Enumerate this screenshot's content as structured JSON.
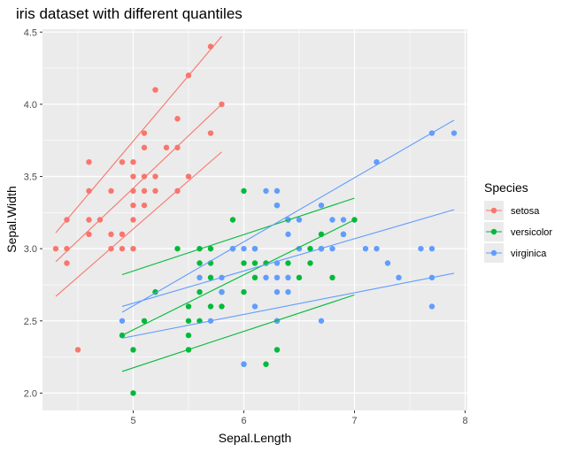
{
  "chart_data": {
    "type": "scatter",
    "title": "iris dataset with different quantiles",
    "xlabel": "Sepal.Length",
    "ylabel": "Sepal.Width",
    "xlim": [
      4.18,
      8.02
    ],
    "ylim": [
      1.88,
      4.52
    ],
    "x_ticks": [
      5,
      6,
      7,
      8
    ],
    "y_ticks": [
      2.0,
      2.5,
      3.0,
      3.5,
      4.0,
      4.5
    ],
    "y_tick_labels": [
      "2.0",
      "2.5",
      "3.0",
      "3.5",
      "4.0",
      "4.5"
    ],
    "x_tick_labels": [
      "5",
      "6",
      "7",
      "8"
    ],
    "grid": true,
    "legend": {
      "title": "Species",
      "placement": "right",
      "entries": [
        "setosa",
        "versicolor",
        "virginica"
      ]
    },
    "series": [
      {
        "name": "setosa",
        "color": "#F8766D",
        "points": [
          [
            4.3,
            3.0
          ],
          [
            4.4,
            2.9
          ],
          [
            4.4,
            3.0
          ],
          [
            4.4,
            3.2
          ],
          [
            4.5,
            2.3
          ],
          [
            4.6,
            3.1
          ],
          [
            4.6,
            3.2
          ],
          [
            4.6,
            3.4
          ],
          [
            4.6,
            3.6
          ],
          [
            4.7,
            3.2
          ],
          [
            4.8,
            3.0
          ],
          [
            4.8,
            3.1
          ],
          [
            4.8,
            3.4
          ],
          [
            4.9,
            3.0
          ],
          [
            4.9,
            3.1
          ],
          [
            4.9,
            3.6
          ],
          [
            5.0,
            3.0
          ],
          [
            5.0,
            3.2
          ],
          [
            5.0,
            3.3
          ],
          [
            5.0,
            3.4
          ],
          [
            5.0,
            3.5
          ],
          [
            5.0,
            3.6
          ],
          [
            5.1,
            3.3
          ],
          [
            5.1,
            3.4
          ],
          [
            5.1,
            3.5
          ],
          [
            5.1,
            3.7
          ],
          [
            5.1,
            3.8
          ],
          [
            5.2,
            3.4
          ],
          [
            5.2,
            3.5
          ],
          [
            5.2,
            4.1
          ],
          [
            5.3,
            3.7
          ],
          [
            5.4,
            3.4
          ],
          [
            5.4,
            3.7
          ],
          [
            5.4,
            3.9
          ],
          [
            5.5,
            3.5
          ],
          [
            5.5,
            4.2
          ],
          [
            5.7,
            3.8
          ],
          [
            5.7,
            4.4
          ],
          [
            5.8,
            4.0
          ]
        ],
        "quantile_lines": [
          {
            "x": [
              4.3,
              5.8
            ],
            "y": [
              3.11,
              4.47
            ]
          },
          {
            "x": [
              4.3,
              5.8
            ],
            "y": [
              2.91,
              4.0
            ]
          },
          {
            "x": [
              4.3,
              5.8
            ],
            "y": [
              2.67,
              3.67
            ]
          }
        ]
      },
      {
        "name": "versicolor",
        "color": "#00BA38",
        "points": [
          [
            4.9,
            2.4
          ],
          [
            5.0,
            2.0
          ],
          [
            5.0,
            2.3
          ],
          [
            5.1,
            2.5
          ],
          [
            5.2,
            2.7
          ],
          [
            5.4,
            3.0
          ],
          [
            5.5,
            2.3
          ],
          [
            5.5,
            2.4
          ],
          [
            5.5,
            2.5
          ],
          [
            5.5,
            2.6
          ],
          [
            5.6,
            2.5
          ],
          [
            5.6,
            2.7
          ],
          [
            5.6,
            2.9
          ],
          [
            5.6,
            3.0
          ],
          [
            5.7,
            2.6
          ],
          [
            5.7,
            2.8
          ],
          [
            5.7,
            2.9
          ],
          [
            5.7,
            3.0
          ],
          [
            5.8,
            2.6
          ],
          [
            5.8,
            2.7
          ],
          [
            5.9,
            3.0
          ],
          [
            5.9,
            3.2
          ],
          [
            6.0,
            2.2
          ],
          [
            6.0,
            2.7
          ],
          [
            6.0,
            2.9
          ],
          [
            6.0,
            3.4
          ],
          [
            6.1,
            2.8
          ],
          [
            6.1,
            2.9
          ],
          [
            6.1,
            3.0
          ],
          [
            6.2,
            2.2
          ],
          [
            6.2,
            2.9
          ],
          [
            6.3,
            2.3
          ],
          [
            6.3,
            2.5
          ],
          [
            6.3,
            3.3
          ],
          [
            6.4,
            2.9
          ],
          [
            6.4,
            3.2
          ],
          [
            6.5,
            2.8
          ],
          [
            6.6,
            2.9
          ],
          [
            6.6,
            3.0
          ],
          [
            6.7,
            3.0
          ],
          [
            6.7,
            3.1
          ],
          [
            6.8,
            2.8
          ],
          [
            6.9,
            3.1
          ],
          [
            7.0,
            3.2
          ]
        ],
        "quantile_lines": [
          {
            "x": [
              4.9,
              7.0
            ],
            "y": [
              2.82,
              3.35
            ]
          },
          {
            "x": [
              4.9,
              7.0
            ],
            "y": [
              2.4,
              3.2
            ]
          },
          {
            "x": [
              4.9,
              7.0
            ],
            "y": [
              2.15,
              2.68
            ]
          }
        ]
      },
      {
        "name": "virginica",
        "color": "#619CFF",
        "points": [
          [
            4.9,
            2.5
          ],
          [
            5.6,
            2.8
          ],
          [
            5.7,
            2.5
          ],
          [
            5.8,
            2.7
          ],
          [
            5.8,
            2.8
          ],
          [
            5.9,
            3.0
          ],
          [
            6.0,
            2.2
          ],
          [
            6.0,
            3.0
          ],
          [
            6.1,
            2.6
          ],
          [
            6.1,
            3.0
          ],
          [
            6.2,
            2.8
          ],
          [
            6.2,
            3.4
          ],
          [
            6.3,
            2.5
          ],
          [
            6.3,
            2.7
          ],
          [
            6.3,
            2.8
          ],
          [
            6.3,
            2.9
          ],
          [
            6.3,
            3.3
          ],
          [
            6.3,
            3.4
          ],
          [
            6.4,
            2.7
          ],
          [
            6.4,
            2.8
          ],
          [
            6.4,
            3.1
          ],
          [
            6.4,
            3.2
          ],
          [
            6.5,
            3.0
          ],
          [
            6.5,
            3.2
          ],
          [
            6.7,
            2.5
          ],
          [
            6.7,
            3.0
          ],
          [
            6.7,
            3.3
          ],
          [
            6.8,
            3.0
          ],
          [
            6.8,
            3.2
          ],
          [
            6.9,
            3.1
          ],
          [
            6.9,
            3.2
          ],
          [
            7.1,
            3.0
          ],
          [
            7.2,
            3.0
          ],
          [
            7.2,
            3.6
          ],
          [
            7.3,
            2.9
          ],
          [
            7.4,
            2.8
          ],
          [
            7.6,
            3.0
          ],
          [
            7.7,
            2.6
          ],
          [
            7.7,
            2.8
          ],
          [
            7.7,
            3.0
          ],
          [
            7.7,
            3.8
          ],
          [
            7.9,
            3.8
          ]
        ],
        "quantile_lines": [
          {
            "x": [
              4.9,
              7.9
            ],
            "y": [
              2.56,
              3.89
            ]
          },
          {
            "x": [
              4.9,
              7.9
            ],
            "y": [
              2.6,
              3.27
            ]
          },
          {
            "x": [
              4.9,
              7.9
            ],
            "y": [
              2.38,
              2.83
            ]
          }
        ]
      }
    ]
  }
}
